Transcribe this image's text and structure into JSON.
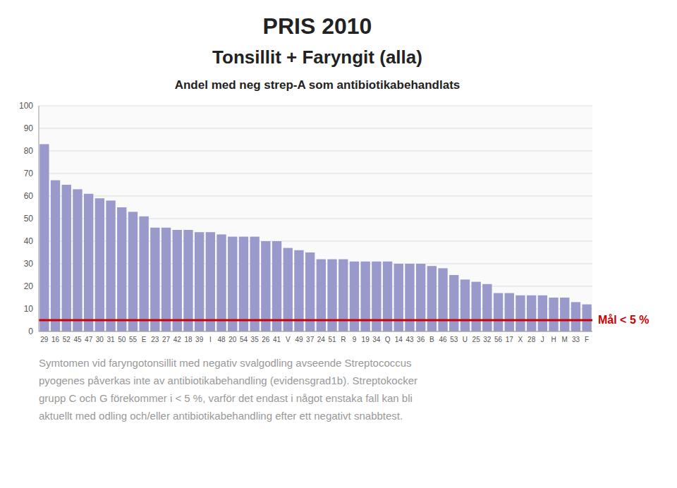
{
  "chart_data": {
    "type": "bar",
    "title": "PRIS 2010",
    "subtitle": [
      "Tonsillit + Faryngit (alla)",
      "Andel med neg strep-A som antibiotikabehandlats"
    ],
    "categories": [
      "29",
      "16",
      "52",
      "45",
      "47",
      "30",
      "31",
      "50",
      "55",
      "E",
      "23",
      "27",
      "42",
      "18",
      "39",
      "I",
      "48",
      "20",
      "54",
      "35",
      "26",
      "41",
      "V",
      "49",
      "37",
      "24",
      "51",
      "R",
      "9",
      "19",
      "34",
      "Q",
      "14",
      "43",
      "36",
      "B",
      "46",
      "53",
      "U",
      "25",
      "32",
      "56",
      "17",
      "X",
      "28",
      "J",
      "H",
      "M",
      "33",
      "F"
    ],
    "values": [
      83,
      67,
      65,
      63,
      61,
      59,
      58,
      55,
      53,
      51,
      46,
      46,
      45,
      45,
      44,
      44,
      43,
      42,
      42,
      42,
      40,
      40,
      37,
      36,
      35,
      32,
      32,
      32,
      31,
      31,
      31,
      31,
      30,
      30,
      30,
      29,
      28,
      25,
      23,
      22,
      21,
      17,
      17,
      16,
      16,
      16,
      15,
      15,
      13,
      12
    ],
    "color": "#9999cc",
    "ylim": [
      0,
      100
    ],
    "yticks": [
      0,
      10,
      20,
      30,
      40,
      50,
      60,
      70,
      80,
      90,
      100
    ],
    "grid": true,
    "annotations": [
      {
        "text": "Mål < 5 %",
        "y": 5,
        "color": "#cc0000"
      }
    ],
    "footnote": [
      "Symtomen vid faryngotonsillit med negativ svalgodling avseende Streptococcus",
      "pyogenes påverkas inte av antibiotikabehandling (evidensgrad1b). Streptokocker",
      "grupp C och G förekommer i < 5 %, varför det endast i något enstaka fall kan bli",
      "aktuellt med odling och/eller antibiotikabehandling efter ett negativt snabbtest."
    ]
  }
}
